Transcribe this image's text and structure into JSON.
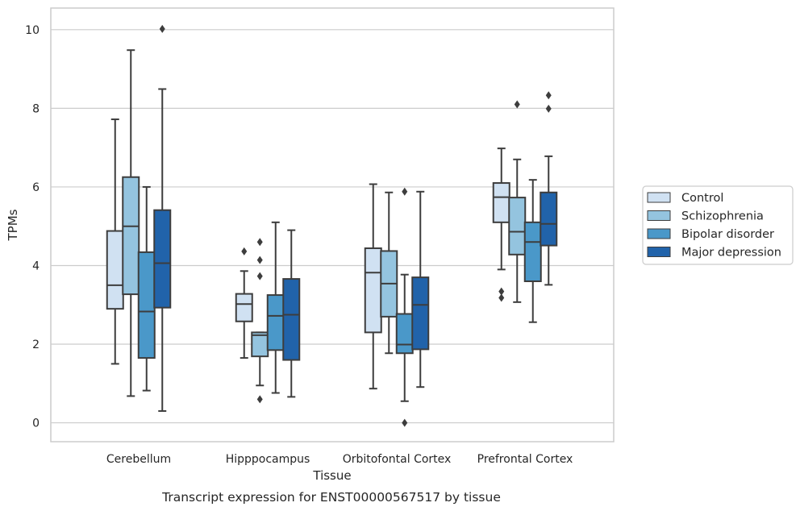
{
  "chart_data": {
    "type": "box",
    "caption": "Transcript expression for ENST00000567517 by tissue",
    "xlabel": "Tissue",
    "ylabel": "TPMs",
    "ylim": [
      -0.48,
      10.55
    ],
    "yticks": [
      0,
      2,
      4,
      6,
      8,
      10
    ],
    "grid": "horizontal",
    "legend_position": "right",
    "categories": [
      "Cerebellum",
      "Hipppocampus",
      "Orbitofontal Cortex",
      "Prefrontal Cortex"
    ],
    "series": [
      {
        "name": "Control",
        "color": "#d0e1f2",
        "boxes": [
          {
            "whisker_low": 1.5,
            "q1": 2.9,
            "median": 3.5,
            "q3": 4.88,
            "whisker_high": 7.72,
            "outliers": []
          },
          {
            "whisker_low": 1.65,
            "q1": 2.58,
            "median": 3.02,
            "q3": 3.28,
            "whisker_high": 3.86,
            "outliers": [
              4.36
            ]
          },
          {
            "whisker_low": 0.87,
            "q1": 2.3,
            "median": 3.82,
            "q3": 4.44,
            "whisker_high": 6.07,
            "outliers": []
          },
          {
            "whisker_low": 3.9,
            "q1": 5.1,
            "median": 5.74,
            "q3": 6.1,
            "whisker_high": 6.98,
            "outliers": [
              3.34,
              3.18
            ]
          }
        ]
      },
      {
        "name": "Schizophrenia",
        "color": "#94c4df",
        "boxes": [
          {
            "whisker_low": 0.68,
            "q1": 3.27,
            "median": 5.0,
            "q3": 6.25,
            "whisker_high": 9.48,
            "outliers": []
          },
          {
            "whisker_low": 0.95,
            "q1": 1.69,
            "median": 2.23,
            "q3": 2.3,
            "whisker_high": 2.3,
            "outliers": [
              4.6,
              4.14,
              3.73,
              0.6
            ]
          },
          {
            "whisker_low": 1.77,
            "q1": 2.7,
            "median": 3.54,
            "q3": 4.37,
            "whisker_high": 5.86,
            "outliers": []
          },
          {
            "whisker_low": 3.07,
            "q1": 4.28,
            "median": 4.86,
            "q3": 5.73,
            "whisker_high": 6.7,
            "outliers": [
              8.1
            ]
          }
        ]
      },
      {
        "name": "Bipolar disorder",
        "color": "#4a98c9",
        "boxes": [
          {
            "whisker_low": 0.82,
            "q1": 1.65,
            "median": 2.83,
            "q3": 4.34,
            "whisker_high": 6.0,
            "outliers": []
          },
          {
            "whisker_low": 0.76,
            "q1": 1.85,
            "median": 2.72,
            "q3": 3.25,
            "whisker_high": 5.1,
            "outliers": []
          },
          {
            "whisker_low": 0.55,
            "q1": 1.77,
            "median": 1.99,
            "q3": 2.77,
            "whisker_high": 3.77,
            "outliers": [
              5.88,
              0.0
            ]
          },
          {
            "whisker_low": 2.56,
            "q1": 3.6,
            "median": 4.6,
            "q3": 5.1,
            "whisker_high": 6.18,
            "outliers": []
          }
        ]
      },
      {
        "name": "Major depression",
        "color": "#2163aa",
        "boxes": [
          {
            "whisker_low": 0.3,
            "q1": 2.93,
            "median": 4.06,
            "q3": 5.41,
            "whisker_high": 8.49,
            "outliers": [
              10.02
            ]
          },
          {
            "whisker_low": 0.66,
            "q1": 1.6,
            "median": 2.75,
            "q3": 3.66,
            "whisker_high": 4.9,
            "outliers": []
          },
          {
            "whisker_low": 0.91,
            "q1": 1.87,
            "median": 3.0,
            "q3": 3.7,
            "whisker_high": 5.88,
            "outliers": []
          },
          {
            "whisker_low": 3.51,
            "q1": 4.51,
            "median": 5.06,
            "q3": 5.86,
            "whisker_high": 6.78,
            "outliers": [
              8.33,
              7.99
            ]
          }
        ]
      }
    ]
  }
}
